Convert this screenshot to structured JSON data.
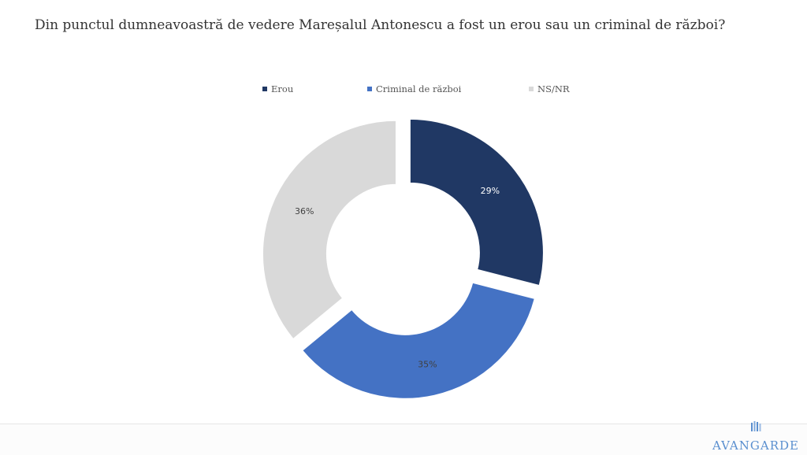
{
  "title": "Din punctul dumneavoastră de vedere Mareșalul Antonescu a fost un erou sau un criminal de război?",
  "colors": {
    "erou": "#203864",
    "criminal": "#4472c4",
    "nsnr": "#d9d9d9"
  },
  "chart_data": {
    "type": "pie",
    "variant": "donut-exploded",
    "title": "Din punctul dumneavoastră de vedere Mareșalul Antonescu a fost un erou sau un criminal de război?",
    "legend_position": "top",
    "categories": [
      "Erou",
      "Criminal de război",
      "NS/NR"
    ],
    "values": [
      29,
      35,
      36
    ],
    "labels": [
      "29%",
      "35%",
      "36%"
    ],
    "colors": [
      "#203864",
      "#4472c4",
      "#d9d9d9"
    ]
  },
  "logo": {
    "text": "AVANGARDE"
  }
}
